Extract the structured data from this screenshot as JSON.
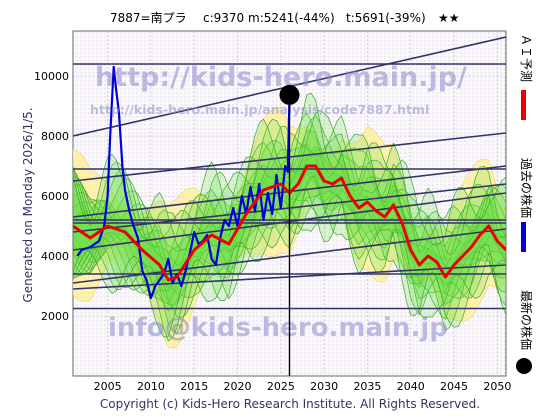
{
  "header": {
    "code_name": "7887=南プラ",
    "current": "c:9370",
    "min": "m:5241(-44%)",
    "target": "t:5691(-39%)",
    "stars": "★★"
  },
  "side_text": "Generated on Monday 2026/1/5.",
  "copyright": "Copyright (c) Kids-Hero Research Institute. All Rights Reserved.",
  "watermarks": {
    "main": "http://kids-hero.main.jp/",
    "url": "http://kids-hero.main.jp/analysis/code7887.html",
    "email": "info@kids-hero.main.jp"
  },
  "legend": {
    "ai": "ＡＩ予測",
    "past": "過去の株価",
    "latest": "最新の株価"
  },
  "colors": {
    "ai_line": "#ee0000",
    "past_line": "#0000dd",
    "band_green": "#66dd44",
    "band_yellow": "#ffee99",
    "trend_line": "#333366",
    "marker": "#000000"
  },
  "chart_data": {
    "type": "line",
    "x_range": [
      2001,
      2051
    ],
    "y_range": [
      0,
      11500
    ],
    "x_ticks": [
      2005,
      2010,
      2015,
      2020,
      2025,
      2030,
      2035,
      2040,
      2045,
      2050
    ],
    "y_ticks": [
      2000,
      4000,
      6000,
      8000,
      10000
    ],
    "grid": true,
    "latest_point": {
      "x": 2026.0,
      "y": 9370
    },
    "series": [
      {
        "key": "ai",
        "x": [
          2001,
          2003,
          2005,
          2007,
          2009,
          2011,
          2012,
          2013,
          2015,
          2017,
          2019,
          2021,
          2023,
          2025,
          2026,
          2027,
          2028,
          2029,
          2030,
          2031,
          2032,
          2033,
          2034,
          2035,
          2036,
          2037,
          2038,
          2039,
          2040,
          2041,
          2042,
          2043,
          2044,
          2045,
          2046,
          2047,
          2048,
          2049,
          2050,
          2051
        ],
        "y": [
          5000,
          4600,
          5000,
          4800,
          4200,
          3700,
          3200,
          3300,
          4200,
          4700,
          4400,
          5400,
          6200,
          6400,
          6100,
          6400,
          7000,
          7000,
          6500,
          6400,
          6600,
          6000,
          5600,
          5800,
          5500,
          5300,
          5700,
          5100,
          4200,
          3700,
          4000,
          3800,
          3300,
          3700,
          4000,
          4300,
          4700,
          5000,
          4500,
          4200
        ]
      },
      {
        "key": "past",
        "x": [
          2001.5,
          2002,
          2003,
          2004,
          2004.6,
          2005,
          2005.3,
          2005.7,
          2006,
          2006.3,
          2006.7,
          2007,
          2007.5,
          2008,
          2008.5,
          2009,
          2009.5,
          2010,
          2010.5,
          2011,
          2011.5,
          2012,
          2012.5,
          2013,
          2013.5,
          2014,
          2014.5,
          2015,
          2015.5,
          2016,
          2016.5,
          2017,
          2017.5,
          2018,
          2018.5,
          2019,
          2019.5,
          2020,
          2020.5,
          2021,
          2021.5,
          2022,
          2022.5,
          2023,
          2023.5,
          2024,
          2024.5,
          2025,
          2025.5,
          2025.8,
          2026.0
        ],
        "y": [
          4000,
          4200,
          4300,
          4500,
          5000,
          6000,
          8000,
          10300,
          9500,
          8800,
          7000,
          6200,
          5500,
          5000,
          4600,
          3500,
          3200,
          2600,
          3000,
          3200,
          3400,
          3900,
          3100,
          3400,
          3000,
          3500,
          4100,
          4800,
          4400,
          4500,
          4700,
          3900,
          3700,
          4600,
          5200,
          5000,
          5600,
          5000,
          6000,
          5400,
          6300,
          5500,
          6400,
          5200,
          6100,
          5400,
          6700,
          5600,
          7000,
          6800,
          9370
        ]
      }
    ]
  }
}
